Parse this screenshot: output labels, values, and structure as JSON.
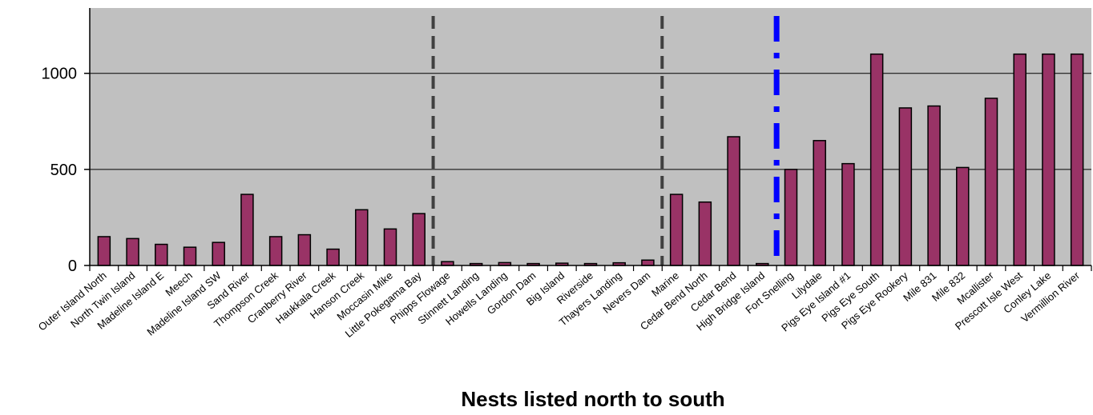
{
  "chart_data": {
    "type": "bar",
    "title": "",
    "xlabel": "Nests listed north to south",
    "ylabel": "",
    "ylim": [
      0,
      1340
    ],
    "yticks": [
      0,
      500,
      1000
    ],
    "grid": true,
    "legend": "none",
    "colors": {
      "plot_background": "#c0c0c0",
      "bar_fill": "#993366",
      "bar_stroke": "#000000",
      "gridline": "#000000",
      "divider_dashed": "#404040",
      "divider_dashdot": "#0000ff"
    },
    "categories": [
      "Outer Island North",
      "North Twin Island",
      "Madeline Island E",
      "Meech",
      "Madeline Island SW",
      "Sand River",
      "Thompson Creek",
      "Cranberry River",
      "Haukkala Creek",
      "Hanson Creek",
      "Moccasin Mike",
      "Little Pokegama Bay",
      "Phipps Flowage",
      "Stinnett Landing",
      "Howells Landing",
      "Gordon Dam",
      "Big Island",
      "Riverside",
      "Thayers Landing",
      "Nevers Dam",
      "Marine",
      "Cedar Bend North",
      "Cedar Bend",
      "High Bridge Island",
      "Fort Snelling",
      "Lilydale",
      "Pigs Eye Island #1",
      "Pigs Eye South",
      "Pigs Eye Rookery",
      "Mile 831",
      "Mile 832",
      "Mcallister",
      "Prescott Isle West",
      "Conley Lake",
      "Vermillion River"
    ],
    "values": [
      150,
      140,
      110,
      95,
      120,
      370,
      150,
      160,
      85,
      290,
      190,
      270,
      20,
      10,
      15,
      10,
      12,
      10,
      14,
      28,
      370,
      330,
      670,
      10,
      500,
      650,
      530,
      1100,
      820,
      830,
      510,
      870,
      1100,
      1100,
      1100
    ],
    "dividers": [
      {
        "after_category": "Little Pokegama Bay",
        "style": "dashed"
      },
      {
        "after_category": "Nevers Dam",
        "style": "dashed"
      },
      {
        "after_category": "High Bridge Island",
        "style": "dash-dot"
      }
    ]
  }
}
